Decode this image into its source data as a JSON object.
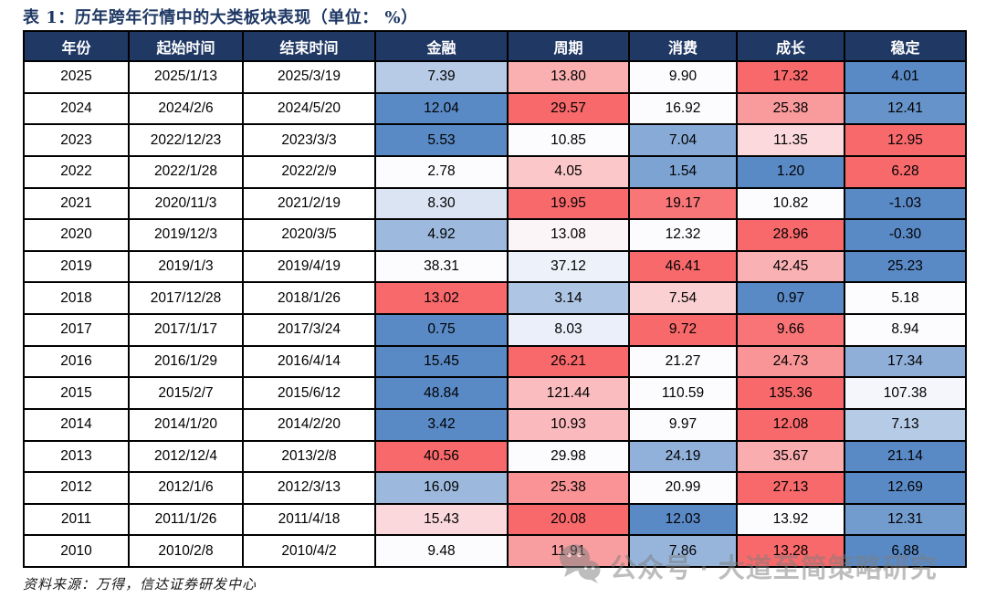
{
  "page": {
    "title": "表 1：历年跨年行情中的大类板块表现（单位： %）",
    "source_note": "资料来源：万得，信达证券研发中心",
    "watermark_text": "公众号 · 大道至简策略研究"
  },
  "colors": {
    "header_bg": "#1F3864",
    "title_color": "#1F3864",
    "heatmap_low": "#5A8AC6",
    "heatmap_mid": "#FCFCFF",
    "heatmap_high": "#F8696B"
  },
  "chart_data": {
    "type": "table",
    "title": "历年跨年行情中的大类板块表现",
    "unit": "%",
    "columns": [
      "年份",
      "起始时间",
      "结束时间",
      "金融",
      "周期",
      "消费",
      "成长",
      "稳定"
    ],
    "value_columns": [
      "金融",
      "周期",
      "消费",
      "成长",
      "稳定"
    ],
    "heatmap": {
      "low_color": "#5A8AC6",
      "mid_color": "#FCFCFF",
      "high_color": "#F8696B",
      "midpoint": "row_median",
      "scope": "per_row"
    },
    "rows": [
      {
        "year": "2025",
        "start": "2025/1/13",
        "end": "2025/3/19",
        "values": [
          "7.39",
          "13.80",
          "9.90",
          "17.32",
          "4.01"
        ]
      },
      {
        "year": "2024",
        "start": "2024/2/6",
        "end": "2024/5/20",
        "values": [
          "12.04",
          "29.57",
          "16.92",
          "25.38",
          "12.41"
        ]
      },
      {
        "year": "2023",
        "start": "2022/12/23",
        "end": "2023/3/3",
        "values": [
          "5.53",
          "10.85",
          "7.04",
          "11.35",
          "12.95"
        ]
      },
      {
        "year": "2022",
        "start": "2022/1/28",
        "end": "2022/2/9",
        "values": [
          "2.78",
          "4.05",
          "1.54",
          "1.20",
          "6.28"
        ]
      },
      {
        "year": "2021",
        "start": "2020/11/3",
        "end": "2021/2/19",
        "values": [
          "8.30",
          "19.95",
          "19.17",
          "10.82",
          "-1.03"
        ]
      },
      {
        "year": "2020",
        "start": "2019/12/3",
        "end": "2020/3/5",
        "values": [
          "4.92",
          "13.08",
          "12.32",
          "28.96",
          "-0.30"
        ]
      },
      {
        "year": "2019",
        "start": "2019/1/3",
        "end": "2019/4/19",
        "values": [
          "38.31",
          "37.12",
          "46.41",
          "42.45",
          "25.23"
        ]
      },
      {
        "year": "2018",
        "start": "2017/12/28",
        "end": "2018/1/26",
        "values": [
          "13.02",
          "3.14",
          "7.54",
          "0.97",
          "5.18"
        ]
      },
      {
        "year": "2017",
        "start": "2017/1/17",
        "end": "2017/3/24",
        "values": [
          "0.75",
          "8.03",
          "9.72",
          "9.66",
          "8.94"
        ]
      },
      {
        "year": "2016",
        "start": "2016/1/29",
        "end": "2016/4/14",
        "values": [
          "15.45",
          "26.21",
          "21.27",
          "24.73",
          "17.34"
        ]
      },
      {
        "year": "2015",
        "start": "2015/2/7",
        "end": "2015/6/12",
        "values": [
          "48.84",
          "121.44",
          "110.59",
          "135.36",
          "107.38"
        ]
      },
      {
        "year": "2014",
        "start": "2014/1/20",
        "end": "2014/2/20",
        "values": [
          "3.42",
          "10.93",
          "9.97",
          "12.08",
          "7.13"
        ]
      },
      {
        "year": "2013",
        "start": "2012/12/4",
        "end": "2013/2/8",
        "values": [
          "40.56",
          "29.98",
          "24.19",
          "35.67",
          "21.14"
        ]
      },
      {
        "year": "2012",
        "start": "2012/1/6",
        "end": "2012/3/13",
        "values": [
          "16.09",
          "25.38",
          "20.99",
          "27.13",
          "12.69"
        ]
      },
      {
        "year": "2011",
        "start": "2011/1/26",
        "end": "2011/4/18",
        "values": [
          "15.43",
          "20.08",
          "12.03",
          "13.92",
          "12.31"
        ]
      },
      {
        "year": "2010",
        "start": "2010/2/8",
        "end": "2010/4/2",
        "values": [
          "9.48",
          "11.91",
          "7.86",
          "13.28",
          "6.88"
        ]
      }
    ]
  }
}
